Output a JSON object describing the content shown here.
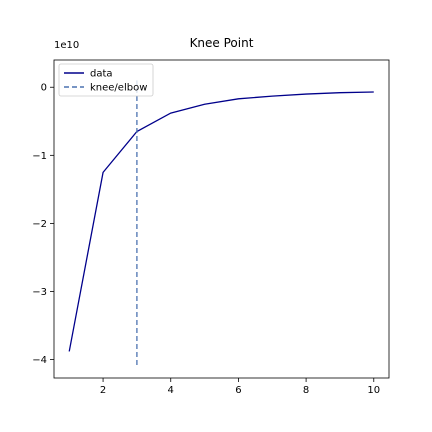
{
  "chart_data": {
    "type": "line",
    "title": "Knee Point",
    "xlabel": "",
    "ylabel": "",
    "y_offset_label": "1e10",
    "xlim": [
      0.55,
      10.45
    ],
    "ylim": [
      -4.27,
      0.4
    ],
    "x_ticks": [
      2,
      4,
      6,
      8,
      10
    ],
    "x_tick_labels": [
      "2",
      "4",
      "6",
      "8",
      "10"
    ],
    "y_ticks": [
      0,
      -1,
      -2,
      -3,
      -4
    ],
    "y_tick_labels": [
      "0",
      "−1",
      "−2",
      "−3",
      "−4"
    ],
    "grid": false,
    "legend_position": "top-left",
    "series": [
      {
        "name": "data",
        "color": "#00008b",
        "x": [
          1,
          2,
          3,
          4,
          5,
          6,
          7,
          8,
          9,
          10
        ],
        "y": [
          -3.88,
          -1.25,
          -0.65,
          -0.38,
          -0.25,
          -0.17,
          -0.13,
          -0.1,
          -0.08,
          -0.07
        ]
      }
    ],
    "knee": {
      "name": "knee/elbow",
      "x": 3,
      "y_range": [
        -4.08,
        0.1
      ],
      "color": "#4c72b0"
    }
  }
}
